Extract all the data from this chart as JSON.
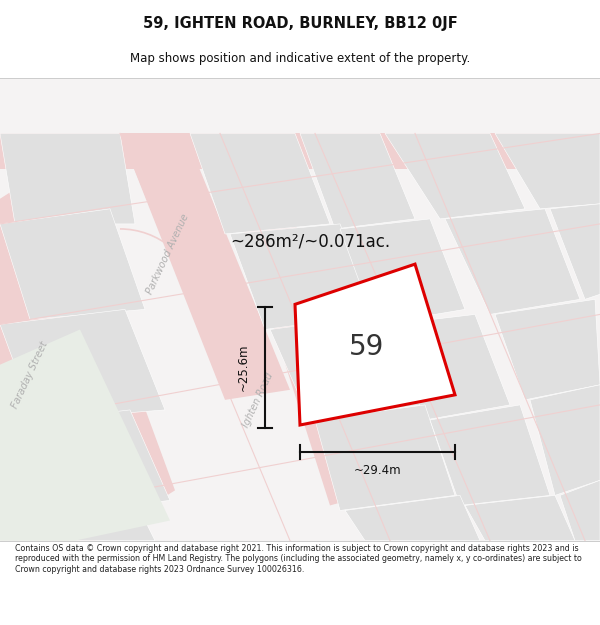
{
  "title": "59, IGHTEN ROAD, BURNLEY, BB12 0JF",
  "subtitle": "Map shows position and indicative extent of the property.",
  "footer": "Contains OS data © Crown copyright and database right 2021. This information is subject to Crown copyright and database rights 2023 and is reproduced with the permission of HM Land Registry. The polygons (including the associated geometry, namely x, y co-ordinates) are subject to Crown copyright and database rights 2023 Ordnance Survey 100026316.",
  "area_label": "~286m²/~0.071ac.",
  "number_label": "59",
  "dim_vertical": "~25.6m",
  "dim_horizontal": "~29.4m",
  "map_bg": "#f5f3f3",
  "road_color": "#f0d0d0",
  "block_color": "#e0e0e0",
  "plot_fill": "#ffffff",
  "plot_outline": "#dd0000",
  "dim_line_color": "#111111",
  "title_color": "#111111",
  "footer_color": "#222222",
  "street_label_color": "#b0b0b0"
}
